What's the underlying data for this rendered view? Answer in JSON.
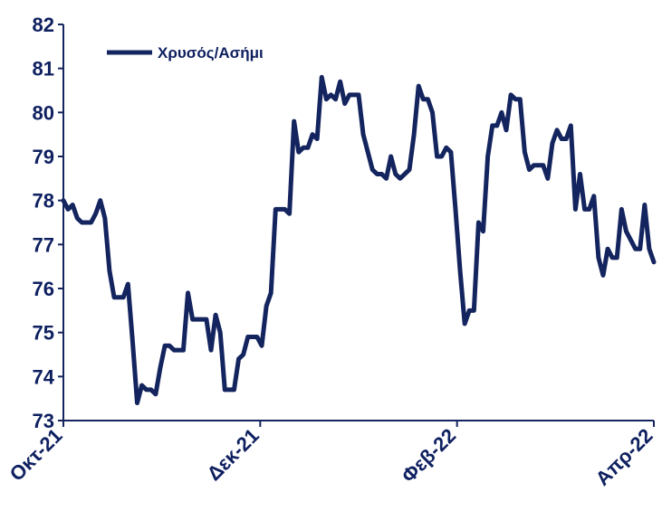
{
  "chart_data": {
    "type": "line",
    "title": "",
    "xlabel": "",
    "ylabel": "",
    "ylim": [
      73,
      82
    ],
    "y_ticks": [
      73,
      74,
      75,
      76,
      77,
      78,
      79,
      80,
      81,
      82
    ],
    "x_tick_labels": [
      "Οκτ-21",
      "Δεκ-21",
      "Φεβ-22",
      "Απρ-22"
    ],
    "grid": false,
    "legend_position": "top-left",
    "line_color": "#13245e",
    "series": [
      {
        "name": "Χρυσός/Ασήμι",
        "x_index_range": [
          0,
          128
        ],
        "values": [
          78.0,
          77.8,
          77.9,
          77.6,
          77.5,
          77.5,
          77.5,
          77.7,
          78.0,
          77.6,
          76.4,
          75.8,
          75.8,
          75.8,
          76.1,
          74.8,
          73.4,
          73.8,
          73.7,
          73.7,
          73.6,
          74.2,
          74.7,
          74.7,
          74.6,
          74.6,
          74.6,
          75.9,
          75.3,
          75.3,
          75.3,
          75.3,
          74.6,
          75.4,
          75.0,
          73.7,
          73.7,
          73.7,
          74.4,
          74.5,
          74.9,
          74.9,
          74.9,
          74.7,
          75.6,
          75.9,
          77.8,
          77.8,
          77.8,
          77.7,
          79.8,
          79.1,
          79.2,
          79.2,
          79.5,
          79.4,
          80.8,
          80.3,
          80.4,
          80.3,
          80.7,
          80.2,
          80.4,
          80.4,
          80.4,
          79.5,
          79.1,
          78.7,
          78.6,
          78.6,
          78.5,
          79.0,
          78.6,
          78.5,
          78.6,
          78.7,
          79.5,
          80.6,
          80.3,
          80.3,
          80.0,
          79.0,
          79.0,
          79.2,
          79.1,
          77.8,
          76.4,
          75.2,
          75.5,
          75.5,
          77.5,
          77.3,
          79.0,
          79.7,
          79.7,
          80.0,
          79.6,
          80.4,
          80.3,
          80.3,
          79.1,
          78.7,
          78.8,
          78.8,
          78.8,
          78.5,
          79.3,
          79.6,
          79.4,
          79.4,
          79.7,
          77.8,
          78.6,
          77.8,
          77.8,
          78.1,
          76.7,
          76.3,
          76.9,
          76.7,
          76.7,
          77.8,
          77.3,
          77.1,
          76.9,
          76.9,
          77.9,
          76.9,
          76.6
        ]
      }
    ]
  }
}
